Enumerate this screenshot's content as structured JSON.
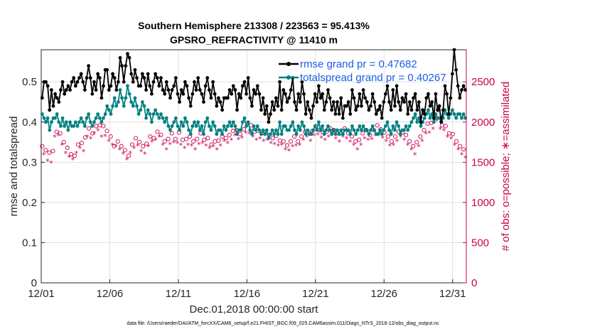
{
  "chart_data": {
    "type": "line",
    "title": "Southern Hemisphere 213308 / 223563 = 95.413%",
    "subtitle": "GPSRO_REFRACTIVITY @ 11410 m",
    "xlabel": "Dec.01,2018 00:00:00 start",
    "ylabel": "rmse and totalspread",
    "y2label": "# of obs: o=possible; ∗=assimilated",
    "footer": "data file: /Users/raeder/DAI/ATM_forcXX/CAM6_setup/f.e21.FHIST_BGC.f09_025.CAM6assim.011/Diags_NTrS_2018-12/obs_diag_output.nc",
    "x_tick_labels": [
      "12/01",
      "12/06",
      "12/11",
      "12/16",
      "12/21",
      "12/26",
      "12/31"
    ],
    "x_tick_days": [
      1,
      6,
      11,
      16,
      21,
      26,
      31
    ],
    "y_ticks": [
      "0",
      "0.1",
      "0.2",
      "0.3",
      "0.4",
      "0.5"
    ],
    "y2_ticks": [
      "0",
      "500",
      "1000",
      "1500",
      "2000",
      "2500"
    ],
    "xlim_days": [
      1,
      32
    ],
    "ylim": [
      0,
      0.58
    ],
    "y2lim": [
      0,
      2900
    ],
    "grid": true,
    "legend_position": "top-right",
    "colors": {
      "rmse": "#000000",
      "totalspread": "#008080",
      "obs": "#c8004f",
      "legend_text": "#1a5ee6"
    },
    "series": [
      {
        "name": "rmse grand pr = 0.47682",
        "key": "rmse",
        "values": [
          0.46,
          0.5,
          0.5,
          0.49,
          0.43,
          0.48,
          0.44,
          0.47,
          0.46,
          0.45,
          0.48,
          0.5,
          0.47,
          0.48,
          0.49,
          0.48,
          0.5,
          0.51,
          0.49,
          0.5,
          0.51,
          0.52,
          0.5,
          0.48,
          0.51,
          0.54,
          0.51,
          0.47,
          0.5,
          0.48,
          0.52,
          0.51,
          0.46,
          0.49,
          0.53,
          0.53,
          0.48,
          0.49,
          0.52,
          0.51,
          0.48,
          0.5,
          0.56,
          0.54,
          0.5,
          0.54,
          0.57,
          0.56,
          0.52,
          0.5,
          0.53,
          0.51,
          0.49,
          0.49,
          0.52,
          0.51,
          0.48,
          0.52,
          0.49,
          0.47,
          0.5,
          0.52,
          0.51,
          0.49,
          0.51,
          0.48,
          0.47,
          0.5,
          0.48,
          0.46,
          0.48,
          0.49,
          0.51,
          0.47,
          0.45,
          0.48,
          0.47,
          0.5,
          0.49,
          0.46,
          0.44,
          0.47,
          0.5,
          0.48,
          0.51,
          0.48,
          0.47,
          0.45,
          0.49,
          0.51,
          0.48,
          0.46,
          0.5,
          0.47,
          0.44,
          0.46,
          0.45,
          0.43,
          0.46,
          0.46,
          0.46,
          0.48,
          0.47,
          0.49,
          0.48,
          0.43,
          0.47,
          0.46,
          0.49,
          0.5,
          0.47,
          0.51,
          0.46,
          0.44,
          0.48,
          0.47,
          0.49,
          0.47,
          0.43,
          0.46,
          0.42,
          0.44,
          0.4,
          0.42,
          0.45,
          0.43,
          0.46,
          0.44,
          0.5,
          0.43,
          0.48,
          0.47,
          0.45,
          0.46,
          0.48,
          0.51,
          0.45,
          0.43,
          0.47,
          0.45,
          0.5,
          0.47,
          0.42,
          0.45,
          0.43,
          0.41,
          0.44,
          0.47,
          0.45,
          0.49,
          0.46,
          0.47,
          0.43,
          0.45,
          0.48,
          0.46,
          0.43,
          0.45,
          0.42,
          0.45,
          0.42,
          0.46,
          0.41,
          0.44,
          0.44,
          0.45,
          0.42,
          0.48,
          0.46,
          0.43,
          0.44,
          0.47,
          0.44,
          0.48,
          0.46,
          0.45,
          0.43,
          0.44,
          0.47,
          0.45,
          0.42,
          0.43,
          0.44,
          0.41,
          0.45,
          0.47,
          0.49,
          0.45,
          0.43,
          0.48,
          0.44,
          0.49,
          0.45,
          0.43,
          0.46,
          0.45,
          0.47,
          0.42,
          0.45,
          0.43,
          0.46,
          0.47,
          0.43,
          0.45,
          0.4,
          0.43,
          0.42,
          0.46,
          0.47,
          0.44,
          0.45,
          0.41,
          0.47,
          0.43,
          0.44,
          0.4,
          0.43,
          0.49,
          0.47,
          0.42,
          0.46,
          0.52,
          0.58,
          0.53,
          0.49,
          0.46,
          0.48,
          0.49,
          0.48
        ]
      },
      {
        "name": "totalspread grand pr = 0.40267",
        "key": "totalspread",
        "values": [
          0.42,
          0.41,
          0.4,
          0.41,
          0.38,
          0.4,
          0.41,
          0.41,
          0.42,
          0.4,
          0.39,
          0.41,
          0.39,
          0.4,
          0.38,
          0.4,
          0.39,
          0.39,
          0.4,
          0.39,
          0.4,
          0.41,
          0.4,
          0.39,
          0.41,
          0.42,
          0.4,
          0.39,
          0.4,
          0.41,
          0.42,
          0.41,
          0.4,
          0.41,
          0.42,
          0.44,
          0.43,
          0.42,
          0.44,
          0.46,
          0.44,
          0.45,
          0.48,
          0.46,
          0.44,
          0.46,
          0.49,
          0.47,
          0.45,
          0.44,
          0.46,
          0.44,
          0.42,
          0.43,
          0.45,
          0.44,
          0.41,
          0.43,
          0.42,
          0.4,
          0.42,
          0.43,
          0.42,
          0.41,
          0.42,
          0.41,
          0.4,
          0.41,
          0.39,
          0.38,
          0.39,
          0.4,
          0.41,
          0.39,
          0.38,
          0.4,
          0.39,
          0.41,
          0.4,
          0.38,
          0.37,
          0.39,
          0.4,
          0.39,
          0.4,
          0.38,
          0.39,
          0.37,
          0.4,
          0.41,
          0.39,
          0.38,
          0.4,
          0.39,
          0.37,
          0.38,
          0.38,
          0.37,
          0.39,
          0.38,
          0.39,
          0.4,
          0.39,
          0.4,
          0.39,
          0.37,
          0.38,
          0.38,
          0.4,
          0.41,
          0.39,
          0.4,
          0.38,
          0.37,
          0.39,
          0.38,
          0.39,
          0.38,
          0.37,
          0.38,
          0.37,
          0.38,
          0.36,
          0.37,
          0.38,
          0.37,
          0.38,
          0.37,
          0.4,
          0.37,
          0.39,
          0.39,
          0.38,
          0.38,
          0.39,
          0.4,
          0.38,
          0.37,
          0.39,
          0.38,
          0.4,
          0.39,
          0.37,
          0.38,
          0.37,
          0.37,
          0.38,
          0.39,
          0.38,
          0.4,
          0.38,
          0.39,
          0.37,
          0.38,
          0.39,
          0.38,
          0.37,
          0.38,
          0.37,
          0.38,
          0.37,
          0.38,
          0.37,
          0.38,
          0.38,
          0.38,
          0.37,
          0.39,
          0.38,
          0.37,
          0.38,
          0.39,
          0.38,
          0.39,
          0.38,
          0.38,
          0.37,
          0.38,
          0.39,
          0.38,
          0.37,
          0.37,
          0.38,
          0.37,
          0.38,
          0.39,
          0.4,
          0.38,
          0.37,
          0.39,
          0.38,
          0.4,
          0.39,
          0.37,
          0.38,
          0.38,
          0.39,
          0.38,
          0.39,
          0.4,
          0.41,
          0.42,
          0.4,
          0.41,
          0.39,
          0.4,
          0.41,
          0.42,
          0.43,
          0.41,
          0.42,
          0.4,
          0.42,
          0.41,
          0.41,
          0.4,
          0.41,
          0.43,
          0.42,
          0.41,
          0.42,
          0.43,
          0.42,
          0.41,
          0.42,
          0.42,
          0.41,
          0.42,
          0.41
        ]
      },
      {
        "name": "possible",
        "key": "possible",
        "axis": "y2",
        "values": [
          1700,
          1680,
          1650,
          1600,
          1620,
          1580,
          1640,
          1900,
          1880,
          1920,
          1860,
          1800,
          1750,
          1700,
          1680,
          1650,
          1600,
          1620,
          1580,
          1700,
          1720,
          1760,
          1740,
          1720,
          1810,
          1900,
          1920,
          1880,
          1860,
          1940,
          1950,
          1980,
          1960,
          1900,
          1950,
          1910,
          1890,
          1850,
          1820,
          1800,
          1700,
          1780,
          1760,
          1740,
          1700,
          1690,
          1650,
          1620,
          1580,
          1700,
          1720,
          1760,
          1800,
          1790,
          1750,
          1720,
          1700,
          1690,
          1730,
          1780,
          1820,
          1840,
          1800,
          1860,
          1880,
          1900,
          1840,
          1800,
          1760,
          1740,
          1790,
          1810,
          1860,
          1830,
          1790,
          1820,
          1870,
          1800,
          1780,
          1760,
          1790,
          1800,
          1820,
          1790,
          1760,
          1740,
          1790,
          1810,
          1860,
          1820,
          1780,
          1790,
          1800,
          1760,
          1720,
          1780,
          1760,
          1740,
          1770,
          1790,
          1820,
          1850,
          1800,
          1820,
          1840,
          1860,
          1890,
          1920,
          1900,
          1870,
          1850,
          1890,
          1910,
          1950,
          1980,
          1940,
          1960,
          1900,
          1880,
          1860,
          1890,
          1880,
          1860,
          1850,
          1870,
          1860,
          1840,
          1820,
          1800,
          1810,
          1830,
          1790,
          1770,
          1800,
          1760,
          1740,
          1710,
          1730,
          1760,
          1780,
          1820,
          1790,
          1760,
          1800,
          1820,
          1860,
          1880,
          1900,
          1870,
          1850,
          1890,
          1920,
          1950,
          1930,
          1900,
          1890,
          1870,
          1860,
          1880,
          1900,
          1920,
          1950,
          1900,
          1880,
          1860,
          1840,
          1860,
          1900,
          1920,
          1880,
          1860,
          1840,
          1820,
          1800,
          1760,
          1740,
          1780,
          1800,
          1860,
          1880,
          1900,
          1860,
          1840,
          1870,
          1900,
          1920,
          1960,
          1940,
          1910,
          1890,
          1870,
          1850,
          1820,
          1790,
          1760,
          1800,
          1820,
          1850,
          1880,
          1900,
          1870,
          1860,
          1840,
          1800,
          1760,
          1740,
          1700,
          1680,
          1750,
          1780,
          1820,
          1850,
          1900,
          1940,
          1980,
          1950,
          1990,
          2000,
          2050,
          2100,
          2150,
          2000,
          1960,
          1980,
          1950,
          1900,
          1860,
          1880,
          1850,
          1800,
          1760,
          1740,
          1700,
          1680,
          1660,
          1640
        ]
      },
      {
        "name": "assimilated",
        "key": "assimilated",
        "axis": "y2",
        "values": [
          1620,
          1600,
          1560,
          1520,
          1540,
          1500,
          1560,
          1820,
          1800,
          1840,
          1780,
          1720,
          1670,
          1620,
          1600,
          1570,
          1520,
          1540,
          1500,
          1620,
          1640,
          1680,
          1660,
          1640,
          1730,
          1820,
          1840,
          1800,
          1780,
          1860,
          1870,
          1900,
          1880,
          1820,
          1870,
          1830,
          1810,
          1770,
          1740,
          1720,
          1620,
          1700,
          1680,
          1660,
          1620,
          1610,
          1570,
          1540,
          1500,
          1620,
          1640,
          1680,
          1720,
          1710,
          1670,
          1640,
          1620,
          1610,
          1650,
          1700,
          1740,
          1760,
          1720,
          1780,
          1800,
          1820,
          1760,
          1720,
          1680,
          1660,
          1710,
          1730,
          1780,
          1750,
          1710,
          1740,
          1790,
          1720,
          1700,
          1680,
          1710,
          1720,
          1740,
          1710,
          1680,
          1660,
          1710,
          1730,
          1780,
          1740,
          1700,
          1710,
          1720,
          1680,
          1640,
          1700,
          1680,
          1660,
          1690,
          1710,
          1740,
          1770,
          1720,
          1740,
          1760,
          1780,
          1810,
          1840,
          1820,
          1790,
          1770,
          1810,
          1830,
          1870,
          1900,
          1860,
          1880,
          1820,
          1800,
          1780,
          1810,
          1800,
          1780,
          1770,
          1790,
          1780,
          1760,
          1740,
          1720,
          1730,
          1750,
          1710,
          1690,
          1720,
          1680,
          1660,
          1630,
          1650,
          1680,
          1700,
          1740,
          1710,
          1680,
          1720,
          1740,
          1780,
          1800,
          1820,
          1790,
          1770,
          1810,
          1840,
          1870,
          1850,
          1820,
          1810,
          1790,
          1780,
          1800,
          1820,
          1840,
          1870,
          1820,
          1800,
          1780,
          1760,
          1780,
          1820,
          1840,
          1800,
          1780,
          1760,
          1740,
          1720,
          1680,
          1660,
          1700,
          1720,
          1780,
          1800,
          1820,
          1780,
          1760,
          1790,
          1820,
          1840,
          1880,
          1860,
          1830,
          1810,
          1790,
          1770,
          1740,
          1710,
          1680,
          1720,
          1740,
          1770,
          1800,
          1820,
          1790,
          1780,
          1760,
          1720,
          1680,
          1660,
          1620,
          1600,
          1670,
          1700,
          1740,
          1770,
          1820,
          1860,
          1900,
          1870,
          1910,
          1920,
          1970,
          2020,
          2070,
          1920,
          1880,
          1900,
          1870,
          1820,
          1780,
          1800,
          1770,
          1720,
          1680,
          1660,
          1620,
          1600,
          1580,
          1560
        ]
      }
    ]
  }
}
